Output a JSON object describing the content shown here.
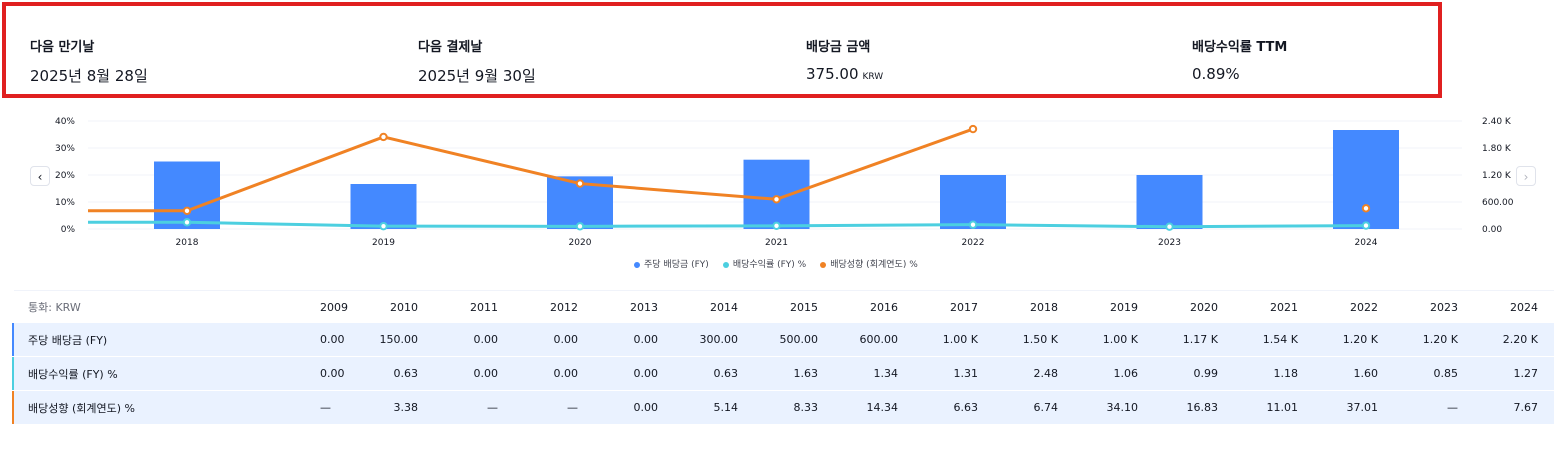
{
  "summary": {
    "items": [
      {
        "label": "다음 만기날",
        "value": "2025년 8월 28일",
        "unit": ""
      },
      {
        "label": "다음 결제날",
        "value": "2025년 9월 30일",
        "unit": ""
      },
      {
        "label": "배당금 금액",
        "value": "375.00",
        "unit": "KRW"
      },
      {
        "label": "배당수익률 TTM",
        "value": "0.89%",
        "unit": ""
      }
    ]
  },
  "nav": {
    "prev": "‹",
    "next": "›"
  },
  "colors": {
    "bar": "#4489ff",
    "yield": "#4ccfe0",
    "payout": "#f08224",
    "highlight": "#e02020"
  },
  "chart_data": {
    "type": "bar",
    "categories": [
      "2018",
      "2019",
      "2020",
      "2021",
      "2022",
      "2023",
      "2024"
    ],
    "series": [
      {
        "name": "주당 배당금 (FY)",
        "axis": "right",
        "type": "bar",
        "values": [
          1500,
          1000,
          1170,
          1540,
          1200,
          1200,
          2200
        ]
      },
      {
        "name": "배당수익률 (FY) %",
        "axis": "left",
        "type": "line",
        "values": [
          2.48,
          1.06,
          0.99,
          1.18,
          1.6,
          0.85,
          1.27
        ]
      },
      {
        "name": "배당성향 (회계연도) %",
        "axis": "left",
        "type": "line",
        "values": [
          6.74,
          34.1,
          16.83,
          11.01,
          37.01,
          null,
          7.67
        ]
      }
    ],
    "left_ticks": [
      "40%",
      "30%",
      "20%",
      "10%",
      "0%"
    ],
    "right_ticks": [
      "2.40 K",
      "1.80 K",
      "1.20 K",
      "600.00",
      "0.00"
    ],
    "ylim_left": [
      0,
      40
    ],
    "ylim_right": [
      0,
      2400
    ],
    "legend": "bottom-center"
  },
  "table": {
    "currency_label": "통화: KRW",
    "years": [
      "2009",
      "2010",
      "2011",
      "2012",
      "2013",
      "2014",
      "2015",
      "2016",
      "2017",
      "2018",
      "2019",
      "2020",
      "2021",
      "2022",
      "2023",
      "2024"
    ],
    "rows": [
      {
        "label": "주당 배당금 (FY)",
        "color": "#4489ff",
        "values": [
          "0.00",
          "150.00",
          "0.00",
          "0.00",
          "0.00",
          "300.00",
          "500.00",
          "600.00",
          "1.00 K",
          "1.50 K",
          "1.00 K",
          "1.17 K",
          "1.54 K",
          "1.20 K",
          "1.20 K",
          "2.20 K"
        ]
      },
      {
        "label": "배당수익률 (FY) %",
        "color": "#4ccfe0",
        "values": [
          "0.00",
          "0.63",
          "0.00",
          "0.00",
          "0.00",
          "0.63",
          "1.63",
          "1.34",
          "1.31",
          "2.48",
          "1.06",
          "0.99",
          "1.18",
          "1.60",
          "0.85",
          "1.27"
        ]
      },
      {
        "label": "배당성향 (회계연도) %",
        "color": "#f08224",
        "values": [
          "—",
          "3.38",
          "—",
          "—",
          "0.00",
          "5.14",
          "8.33",
          "14.34",
          "6.63",
          "6.74",
          "34.10",
          "16.83",
          "11.01",
          "37.01",
          "—",
          "7.67"
        ]
      }
    ]
  }
}
